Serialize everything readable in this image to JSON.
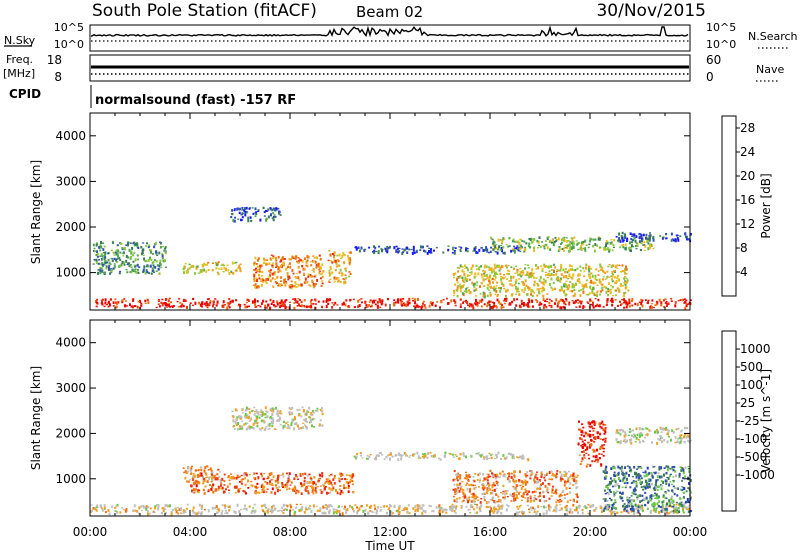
{
  "header": {
    "station": "South Pole Station (fitACF)",
    "beam": "Beam 02",
    "date": "30/Nov/2015"
  },
  "strips": {
    "nsky_label": "N.Sky",
    "nsearch_label": "N.Search",
    "log_top": "10^5",
    "log_bottom": "10^0",
    "freq_label_1": "Freq.",
    "freq_label_2": "[MHz]",
    "freq_ticks": [
      "18",
      "8"
    ],
    "nave_label": "Nave",
    "nave_ticks": [
      "60",
      "0"
    ],
    "cpid_label": "CPID",
    "cpid_text": "normalsound (fast) -157 RF"
  },
  "colors": {
    "power": [
      "#1a1aff",
      "#2f4fb8",
      "#3a7a5a",
      "#4ea64e",
      "#8cc83c",
      "#e8c020",
      "#f0a020",
      "#f07010",
      "#e83010",
      "#ee0000"
    ],
    "velocity": [
      "#ee0000",
      "#f03010",
      "#f07010",
      "#f0a020",
      "#bebebe",
      "#bebebe",
      "#6cc844",
      "#3a7a5a",
      "#2f4fa8",
      "#1a3abf"
    ]
  },
  "chart_data": [
    {
      "type": "heatmap",
      "title": "",
      "xlabel": "",
      "ylabel": "Slant Range [km]",
      "x_ticks": [
        "00:00",
        "04:00",
        "08:00",
        "12:00",
        "16:00",
        "20:00",
        "00:00"
      ],
      "x_range_hours": [
        0,
        24
      ],
      "y_ticks": [
        "1000",
        "2000",
        "3000",
        "4000"
      ],
      "y_range_km": [
        180,
        4500
      ],
      "colorbar": {
        "label": "Power [dB]",
        "range": [
          0,
          30
        ],
        "ticks": [
          "4",
          "8",
          "12",
          "16",
          "20",
          "24",
          "28"
        ]
      },
      "echo_regions": [
        {
          "t0": 0.0,
          "t1": 24.0,
          "r0": 250,
          "r1": 450,
          "level": 0.9
        },
        {
          "t0": 0.1,
          "t1": 3.0,
          "r0": 1000,
          "r1": 1700,
          "level": 0.3
        },
        {
          "t0": 3.7,
          "t1": 6.0,
          "r0": 1000,
          "r1": 1250,
          "level": 0.55
        },
        {
          "t0": 5.6,
          "t1": 7.6,
          "r0": 2150,
          "r1": 2450,
          "level": 0.15
        },
        {
          "t0": 6.5,
          "t1": 9.3,
          "r0": 700,
          "r1": 1400,
          "level": 0.7
        },
        {
          "t0": 9.5,
          "t1": 10.4,
          "r0": 800,
          "r1": 1500,
          "level": 0.65
        },
        {
          "t0": 10.5,
          "t1": 17.5,
          "r0": 1450,
          "r1": 1600,
          "level": 0.15
        },
        {
          "t0": 14.5,
          "t1": 21.5,
          "r0": 500,
          "r1": 1200,
          "level": 0.55
        },
        {
          "t0": 16.0,
          "t1": 22.5,
          "r0": 1500,
          "r1": 1800,
          "level": 0.4
        },
        {
          "t0": 21.0,
          "t1": 24.0,
          "r0": 1700,
          "r1": 1900,
          "level": 0.15
        }
      ]
    },
    {
      "type": "heatmap",
      "title": "",
      "xlabel": "Time UT",
      "ylabel": "Slant Range [km]",
      "x_ticks": [
        "00:00",
        "04:00",
        "08:00",
        "12:00",
        "16:00",
        "20:00",
        "00:00"
      ],
      "x_range_hours": [
        0,
        24
      ],
      "y_ticks": [
        "1000",
        "2000",
        "3000",
        "4000"
      ],
      "y_range_km": [
        180,
        4500
      ],
      "colorbar": {
        "label": "Velocity [m s^-1]",
        "ticks": [
          "1000",
          "500",
          "100",
          "25",
          "-25",
          "-100",
          "-500",
          "-1000"
        ]
      },
      "echo_regions": [
        {
          "t0": 0.0,
          "t1": 24.0,
          "r0": 250,
          "r1": 450,
          "level": 0.45
        },
        {
          "t0": 3.7,
          "t1": 5.2,
          "r0": 950,
          "r1": 1300,
          "level": 0.35
        },
        {
          "t0": 4.0,
          "t1": 10.5,
          "r0": 700,
          "r1": 1150,
          "level": 0.25
        },
        {
          "t0": 5.6,
          "t1": 9.3,
          "r0": 2100,
          "r1": 2600,
          "level": 0.5
        },
        {
          "t0": 10.5,
          "t1": 17.5,
          "r0": 1450,
          "r1": 1600,
          "level": 0.5
        },
        {
          "t0": 14.5,
          "t1": 19.5,
          "r0": 500,
          "r1": 1200,
          "level": 0.3
        },
        {
          "t0": 19.5,
          "t1": 20.6,
          "r0": 1300,
          "r1": 2300,
          "level": 0.1
        },
        {
          "t0": 20.5,
          "t1": 24.0,
          "r0": 300,
          "r1": 1300,
          "level": 0.75
        },
        {
          "t0": 21.0,
          "t1": 24.0,
          "r0": 1800,
          "r1": 2150,
          "level": 0.5
        }
      ]
    }
  ]
}
